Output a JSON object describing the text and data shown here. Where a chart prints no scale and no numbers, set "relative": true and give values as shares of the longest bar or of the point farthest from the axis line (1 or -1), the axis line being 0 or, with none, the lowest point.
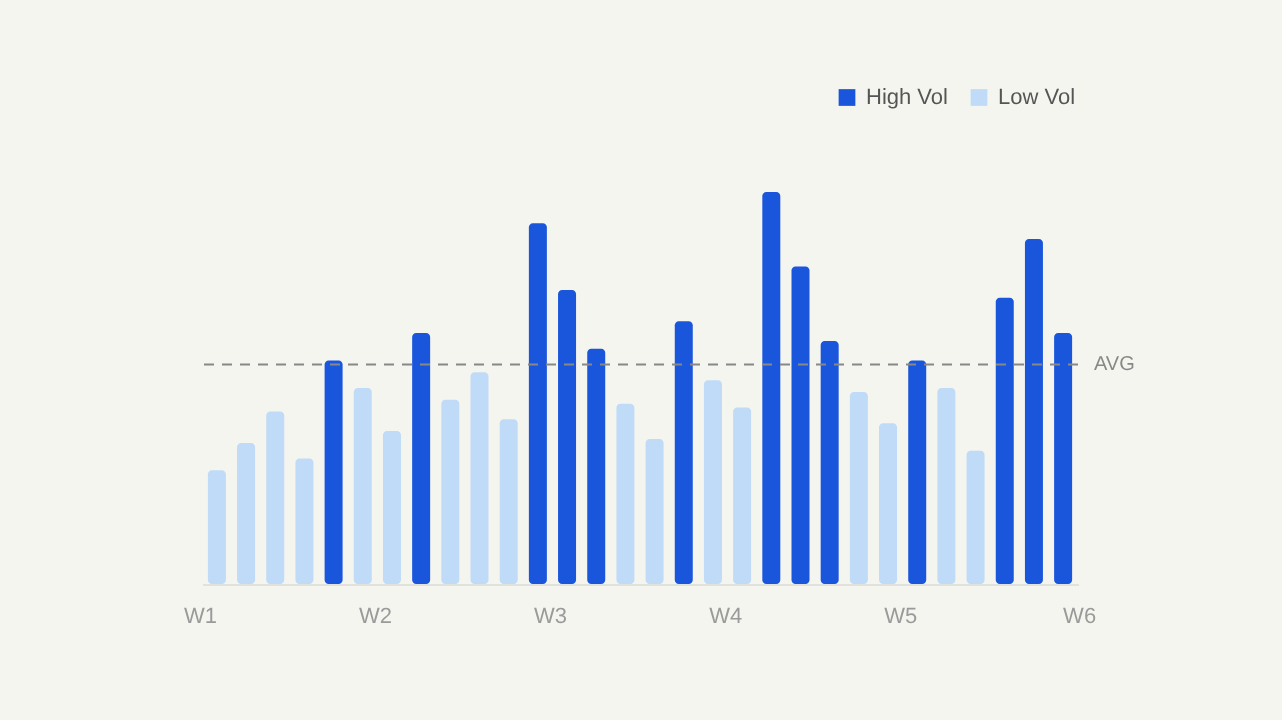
{
  "chart_data": {
    "type": "bar",
    "relative": true,
    "categories": [
      "W1",
      null,
      null,
      null,
      null,
      null,
      "W2",
      null,
      null,
      null,
      null,
      null,
      "W3",
      null,
      null,
      null,
      null,
      null,
      "W4",
      null,
      null,
      null,
      null,
      null,
      "W5",
      null,
      null,
      null,
      null,
      "W6"
    ],
    "series": [
      {
        "name": "High Vol",
        "color": "#1a56db",
        "values": [
          null,
          null,
          null,
          null,
          0.57,
          null,
          null,
          0.64,
          null,
          null,
          null,
          0.92,
          0.75,
          0.6,
          null,
          null,
          0.67,
          null,
          null,
          1,
          0.81,
          0.62,
          null,
          null,
          0.57,
          null,
          null,
          0.73,
          0.88,
          0.64
        ]
      },
      {
        "name": "Low Vol",
        "color": "#bfdbf7",
        "values": [
          0.29,
          0.36,
          0.44,
          0.32,
          null,
          0.5,
          0.39,
          null,
          0.47,
          0.54,
          0.42,
          null,
          null,
          null,
          0.46,
          0.37,
          null,
          0.52,
          0.45,
          null,
          null,
          null,
          0.49,
          0.41,
          null,
          0.5,
          0.34,
          null,
          null,
          null
        ]
      }
    ],
    "ref_lines": [
      {
        "axis": "y",
        "value": 0.56,
        "label": "AVG",
        "color": "#888888",
        "line_style": "dashed"
      }
    ],
    "legend": "top right"
  }
}
